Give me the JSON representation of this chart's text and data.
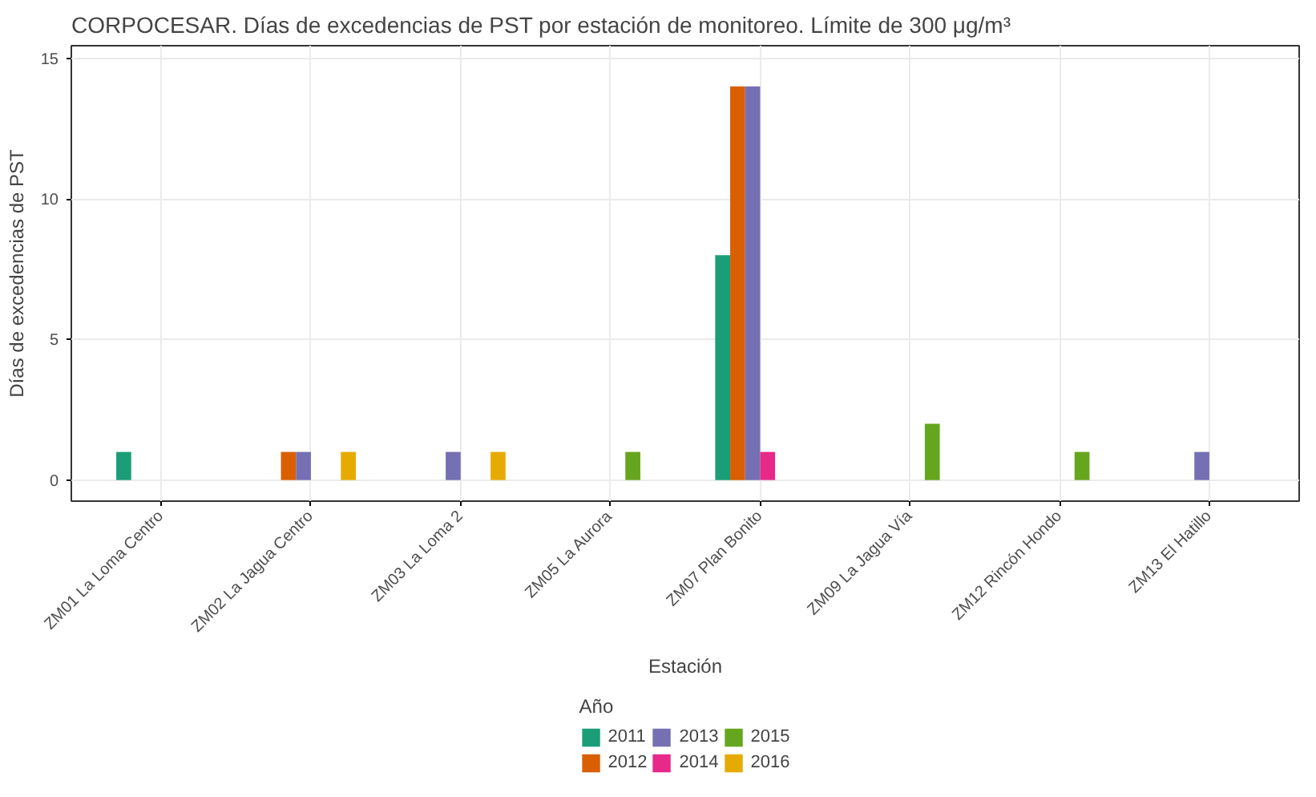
{
  "chart_data": {
    "type": "bar",
    "title": "CORPOCESAR. Días de excedencias de PST por estación de monitoreo. Límite de 300 μg/m³",
    "xlabel": "Estación",
    "ylabel": "Días de excedencias de PST",
    "legend_title": "Año",
    "categories": [
      "ZM01 La Loma Centro",
      "ZM02 La Jagua Centro",
      "ZM03 La Loma 2",
      "ZM05 La Aurora",
      "ZM07 Plan Bonito",
      "ZM09 La Jagua Vía",
      "ZM12 Rincón Hondo",
      "ZM13 El Hatillo"
    ],
    "series": [
      {
        "name": "2011",
        "color": "#1b9e77",
        "values": [
          1,
          0,
          0,
          0,
          8,
          0,
          0,
          0
        ]
      },
      {
        "name": "2012",
        "color": "#d95f02",
        "values": [
          0,
          1,
          0,
          0,
          14,
          0,
          0,
          0
        ]
      },
      {
        "name": "2013",
        "color": "#7570b3",
        "values": [
          0,
          1,
          1,
          0,
          14,
          0,
          0,
          1
        ]
      },
      {
        "name": "2014",
        "color": "#e7298a",
        "values": [
          0,
          0,
          0,
          0,
          1,
          0,
          0,
          0
        ]
      },
      {
        "name": "2015",
        "color": "#66a61e",
        "values": [
          0,
          0,
          0,
          1,
          0,
          2,
          1,
          0
        ]
      },
      {
        "name": "2016",
        "color": "#e6ab02",
        "values": [
          0,
          1,
          1,
          0,
          0,
          0,
          0,
          0
        ]
      }
    ],
    "ylim": [
      -0.75,
      15.45
    ],
    "yticks": [
      0,
      5,
      10,
      15
    ],
    "grid": true,
    "legend": "bottom"
  }
}
